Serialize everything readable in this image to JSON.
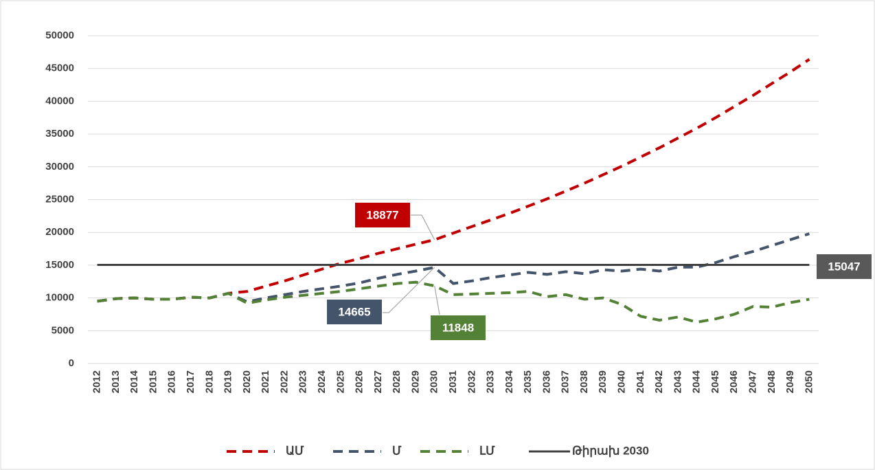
{
  "chart_data": {
    "type": "line",
    "categories": [
      "2012",
      "2013",
      "2014",
      "2015",
      "2016",
      "2017",
      "2018",
      "2019",
      "2020",
      "2021",
      "2022",
      "2023",
      "2024",
      "2025",
      "2026",
      "2027",
      "2028",
      "2029",
      "2030",
      "2031",
      "2032",
      "2033",
      "2034",
      "2035",
      "2036",
      "2037",
      "2038",
      "2039",
      "2040",
      "2041",
      "2042",
      "2043",
      "2044",
      "2045",
      "2046",
      "2047",
      "2048",
      "2049",
      "2050"
    ],
    "series": [
      {
        "name": "ԱՄ",
        "color": "#c00000",
        "dashed": true,
        "values": [
          9500,
          9900,
          10000,
          9800,
          9800,
          10100,
          10000,
          10700,
          11000,
          11800,
          12600,
          13500,
          14400,
          15300,
          16000,
          16800,
          17500,
          18200,
          18877,
          19900,
          20900,
          21900,
          22900,
          24000,
          25100,
          26300,
          27500,
          28800,
          30100,
          31500,
          32900,
          34400,
          35900,
          37500,
          39200,
          40900,
          42700,
          44500,
          46400
        ]
      },
      {
        "name": "Մ",
        "color": "#44546a",
        "dashed": true,
        "values": [
          9500,
          9900,
          10000,
          9800,
          9800,
          10100,
          10000,
          10700,
          9400,
          10000,
          10500,
          11000,
          11400,
          11800,
          12300,
          13000,
          13600,
          14100,
          14665,
          12200,
          12600,
          13100,
          13500,
          13900,
          13600,
          14000,
          13700,
          14300,
          14100,
          14400,
          14100,
          14700,
          14700,
          15400,
          16300,
          17100,
          18000,
          18900,
          19800
        ]
      },
      {
        "name": "ԼՄ",
        "color": "#538135",
        "dashed": true,
        "values": [
          9500,
          9900,
          10000,
          9800,
          9800,
          10100,
          10000,
          10700,
          9200,
          9700,
          10100,
          10400,
          10700,
          11000,
          11400,
          11800,
          12200,
          12400,
          11848,
          10500,
          10600,
          10700,
          10800,
          11000,
          10200,
          10500,
          9800,
          10000,
          9000,
          7200,
          6600,
          7100,
          6300,
          6800,
          7500,
          8700,
          8600,
          9300,
          9800
        ]
      },
      {
        "name": "Թիրախ 2030",
        "color": "#404040",
        "dashed": false,
        "values": [
          15047,
          15047,
          15047,
          15047,
          15047,
          15047,
          15047,
          15047,
          15047,
          15047,
          15047,
          15047,
          15047,
          15047,
          15047,
          15047,
          15047,
          15047,
          15047,
          15047,
          15047,
          15047,
          15047,
          15047,
          15047,
          15047,
          15047,
          15047,
          15047,
          15047,
          15047,
          15047,
          15047,
          15047,
          15047,
          15047,
          15047,
          15047,
          15047
        ]
      }
    ],
    "ylim": [
      0,
      50000
    ],
    "yticks": [
      0,
      5000,
      10000,
      15000,
      20000,
      25000,
      30000,
      35000,
      40000,
      45000,
      50000
    ],
    "grid": true,
    "legend": "bottom"
  }
}
